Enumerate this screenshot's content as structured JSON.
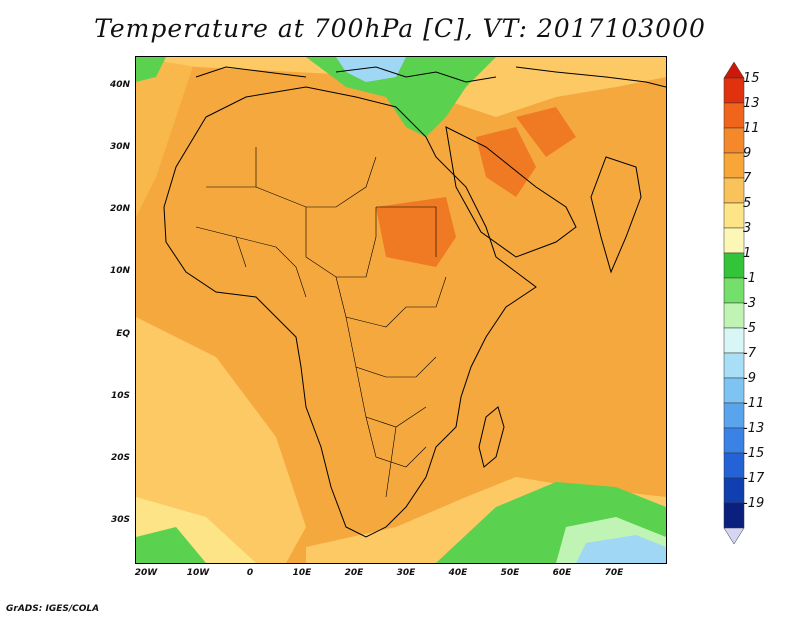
{
  "title": "Temperature at 700hPa [C], VT: 2017103000",
  "credit": "GrADS: IGES/COLA",
  "map": {
    "projection": "latlon",
    "lon_range": [
      -22,
      80
    ],
    "lat_range": [
      -36,
      45
    ]
  },
  "axes": {
    "lat_ticks": [
      {
        "label": "40N",
        "value": 40
      },
      {
        "label": "30N",
        "value": 30
      },
      {
        "label": "20N",
        "value": 20
      },
      {
        "label": "10N",
        "value": 10
      },
      {
        "label": "EQ",
        "value": 0
      },
      {
        "label": "10S",
        "value": -10
      },
      {
        "label": "20S",
        "value": -20
      },
      {
        "label": "30S",
        "value": -30
      }
    ],
    "lon_ticks": [
      {
        "label": "20W",
        "value": -20
      },
      {
        "label": "10W",
        "value": -10
      },
      {
        "label": "0",
        "value": 0
      },
      {
        "label": "10E",
        "value": 10
      },
      {
        "label": "20E",
        "value": 20
      },
      {
        "label": "30E",
        "value": 30
      },
      {
        "label": "40E",
        "value": 40
      },
      {
        "label": "50E",
        "value": 50
      },
      {
        "label": "60E",
        "value": 60
      },
      {
        "label": "70E",
        "value": 70
      }
    ]
  },
  "colorbar": {
    "orientation": "vertical",
    "position": "right",
    "labels": [
      "15",
      "13",
      "11",
      "9",
      "7",
      "5",
      "3",
      "1",
      "-1",
      "-3",
      "-5",
      "-7",
      "-9",
      "-11",
      "-13",
      "-15",
      "-17",
      "-19"
    ],
    "colors": [
      "#e0320f",
      "#f0641c",
      "#f5882a",
      "#f8a638",
      "#fac25a",
      "#fde487",
      "#fdf7b6",
      "#34c43a",
      "#74df6a",
      "#bff4b4",
      "#d8f6f5",
      "#a9dff6",
      "#7ec4f2",
      "#5aa4ee",
      "#3b82e6",
      "#2463d6",
      "#0f3fb0",
      "#0b1f7e"
    ],
    "top_arrow_color": "#cc1a0a",
    "bottom_arrow_color": "#d6d6f4"
  },
  "legend": {
    "warm_color": "#f5a83d",
    "hot_color": "#f07a23",
    "mild_color": "#fcc964",
    "cool_color": "#5ad24f",
    "cold_color": "#9fd7f4"
  }
}
